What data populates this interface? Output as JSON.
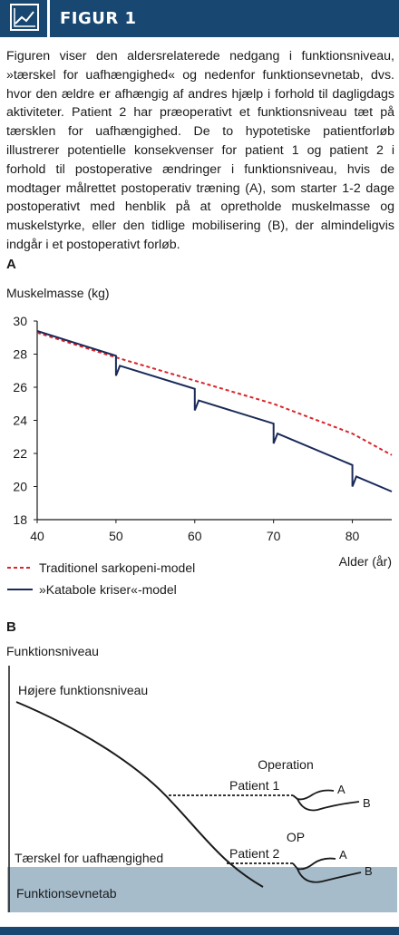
{
  "header": {
    "title": "FIGUR 1",
    "icon": "line-chart-icon",
    "color": "#184872"
  },
  "caption": "Figuren viser den aldersrelaterede nedgang i funktionsniveau, »tærskel for uafhængighed« og nedenfor funktionsevnetab, dvs. hvor den ældre er afhængig af andres hjælp i forhold til dagligdags aktiviteter. Patient 2 har præoperativt et funktionsniveau tæt på tærsklen for uafhængighed. De to hypotetiske patientforløb illustrerer potentielle konsekvenser for patient 1 og patient 2 i forhold til postoperative ændringer i funktionsniveau, hvis de modtager målrettet postoperativ træning (A), som starter 1-2 dage postoperativt med henblik på at opretholde muskelmasse og muskelstyrke, eller den tidlige mobilisering (B), der almindeligvis indgår i et postoperativt forløb.",
  "panel_a_label": "A",
  "panel_b_label": "B",
  "chart_data": [
    {
      "type": "line",
      "ylabel": "Muskelmasse (kg)",
      "xlabel": "Alder (år)",
      "xlim": [
        40,
        85
      ],
      "ylim": [
        18,
        30
      ],
      "xticks": [
        40,
        50,
        60,
        70,
        80
      ],
      "yticks": [
        18,
        20,
        22,
        24,
        26,
        28,
        30
      ],
      "legend_position": "bottom-left",
      "series": [
        {
          "name": "Traditionel sarkopeni-model",
          "color": "#d8252a",
          "style": "dashed",
          "points": [
            [
              40,
              29.3
            ],
            [
              50,
              27.8
            ],
            [
              60,
              26.4
            ],
            [
              70,
              25.0
            ],
            [
              80,
              23.2
            ],
            [
              85,
              21.9
            ]
          ]
        },
        {
          "name": "»Katabole kriser«-model",
          "color": "#1a2a5a",
          "style": "solid",
          "points": [
            [
              40,
              29.4
            ],
            [
              50,
              27.9
            ],
            [
              50,
              26.7
            ],
            [
              50.5,
              27.3
            ],
            [
              60,
              25.9
            ],
            [
              60,
              24.6
            ],
            [
              60.5,
              25.2
            ],
            [
              70,
              23.8
            ],
            [
              70,
              22.6
            ],
            [
              70.5,
              23.2
            ],
            [
              80,
              21.3
            ],
            [
              80,
              20.0
            ],
            [
              80.5,
              20.6
            ],
            [
              85,
              19.7
            ]
          ]
        }
      ]
    },
    {
      "type": "line",
      "ylabel": "Funktionsniveau",
      "band_color": "#a6bccb",
      "labels": {
        "high": "Højere funktionsniveau",
        "operation": "Operation",
        "op": "OP",
        "patient1": "Patient 1",
        "patient2": "Patient 2",
        "threshold": "Tærskel for uafhængighed",
        "loss": "Funktionsevnetab",
        "a1": "A",
        "b1": "B",
        "a2": "A",
        "b2": "B"
      }
    }
  ]
}
